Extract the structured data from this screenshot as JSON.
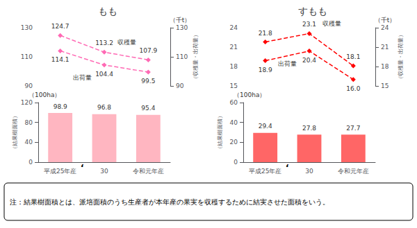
{
  "chart_data": [
    {
      "type": "line",
      "title": "もも",
      "categories": [
        "平成25年産",
        "30",
        "令和元年産"
      ],
      "series": [
        {
          "name": "収穫量",
          "color": "#FF69B4",
          "values": [
            124.7,
            113.2,
            107.9
          ],
          "marker": "diamond",
          "line_style": "dashed"
        },
        {
          "name": "出荷量",
          "color": "#FF69B4",
          "values": [
            114.1,
            104.4,
            99.5
          ],
          "marker": "diamond",
          "line_style": "dashed"
        }
      ],
      "ylim": [
        90,
        130
      ],
      "yticks": [
        90,
        110,
        130
      ],
      "y2lim": [
        90,
        130
      ],
      "y2ticks": [
        90,
        110,
        130
      ],
      "y2label": "（収穫量・出荷量）",
      "y_unit": "（千t）",
      "data_labels": true,
      "tick_labels": "y",
      "grid": false
    },
    {
      "type": "bar",
      "categories": [
        "平成25年産",
        "30",
        "令和元年産"
      ],
      "values": [
        98.9,
        96.8,
        95.4
      ],
      "color": "#FFB6C1",
      "ylim": [
        0,
        120
      ],
      "yticks": [
        0,
        40,
        80,
        120
      ],
      "ylabel": "（結果樹面積）",
      "y_unit": "（100ha）",
      "annotations": [
        "ʻ"
      ],
      "data_labels": true,
      "grid": false
    },
    {
      "type": "line",
      "title": "すもも",
      "categories": [
        "平成25年産",
        "30",
        "令和元年産"
      ],
      "series": [
        {
          "name": "収穫量",
          "color": "#FF0000",
          "values": [
            21.8,
            23.1,
            18.1
          ],
          "marker": "diamond",
          "line_style": "dashed"
        },
        {
          "name": "出荷量",
          "color": "#FF0000",
          "values": [
            18.9,
            20.4,
            16.0
          ],
          "value_labels": [
            "18.9",
            "20.4",
            "16.0"
          ],
          "marker": "diamond",
          "line_style": "dashed"
        }
      ],
      "ylim": [
        15,
        24
      ],
      "yticks": [
        15,
        18,
        21,
        24
      ],
      "y2lim": [
        15,
        24
      ],
      "y2ticks": [
        15,
        18,
        21,
        24
      ],
      "y2label": "（収穫量・出荷量）",
      "y_unit": "（千t）",
      "data_labels": true,
      "tick_labels": "y",
      "grid": false
    },
    {
      "type": "bar",
      "categories": [
        "平成25年産",
        "30",
        "令和元年産"
      ],
      "values": [
        29.4,
        27.8,
        27.7
      ],
      "color": "#FF6666",
      "ylim": [
        0,
        60
      ],
      "yticks": [
        0,
        20,
        40,
        60
      ],
      "ylabel": "（結果樹面積）",
      "y_unit": "（100ha）",
      "annotations": [
        "ʻ"
      ],
      "data_labels": true,
      "grid": false
    }
  ],
  "note": "注：結果樹面積とは、派培面積のうち生産者が本年産の果実を収穫するために結実させた面積をいう。"
}
